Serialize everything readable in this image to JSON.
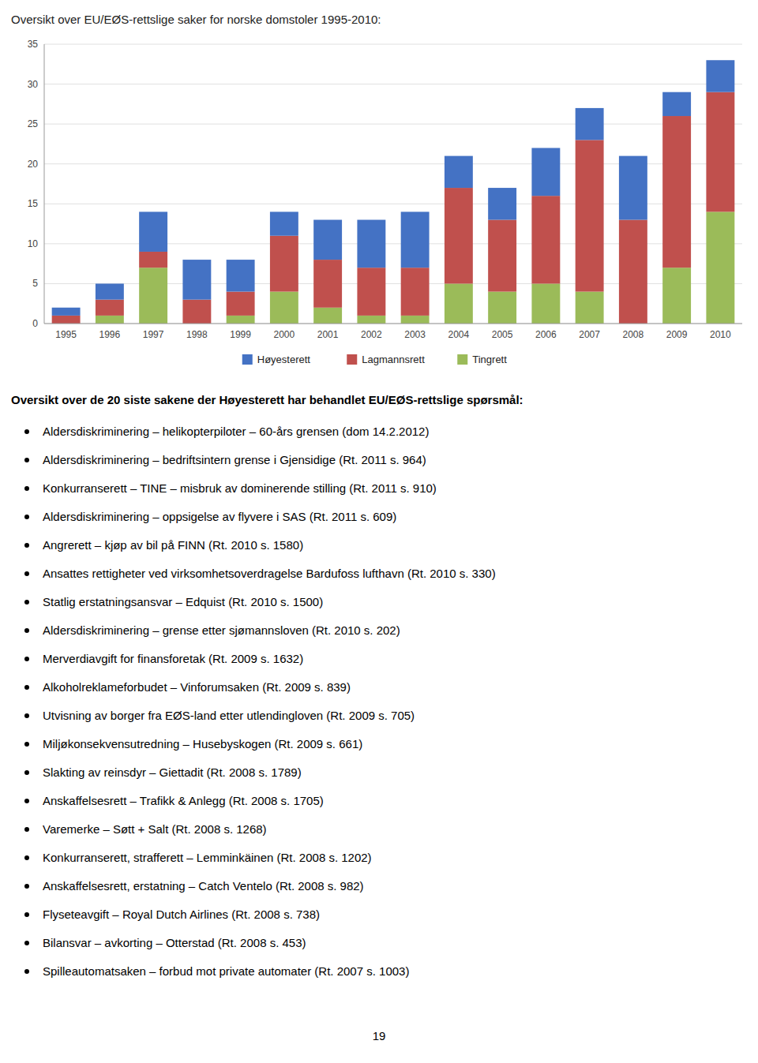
{
  "chart_data": {
    "type": "bar",
    "stacked": true,
    "grid": true,
    "legend": "bottom",
    "title": "Oversikt over EU/EØS-rettslige saker for norske domstoler 1995-2010:",
    "categories": [
      "1995",
      "1996",
      "1997",
      "1998",
      "1999",
      "2000",
      "2001",
      "2002",
      "2003",
      "2004",
      "2005",
      "2006",
      "2007",
      "2008",
      "2009",
      "2010"
    ],
    "series": [
      {
        "name": "Høyesterett",
        "color": "#4472c4",
        "values": [
          1,
          2,
          5,
          5,
          4,
          3,
          5,
          6,
          7,
          4,
          4,
          6,
          4,
          8,
          3,
          4
        ]
      },
      {
        "name": "Lagmannsrett",
        "color": "#c0504d",
        "values": [
          1,
          2,
          2,
          3,
          3,
          7,
          6,
          6,
          6,
          12,
          9,
          11,
          19,
          13,
          19,
          15
        ]
      },
      {
        "name": "Tingrett",
        "color": "#9bbb59",
        "values": [
          0,
          1,
          7,
          0,
          1,
          4,
          2,
          1,
          1,
          5,
          4,
          5,
          4,
          0,
          7,
          14
        ]
      }
    ],
    "ylim": [
      0,
      35
    ],
    "yticks": [
      0,
      5,
      10,
      15,
      20,
      25,
      30,
      35
    ]
  },
  "section_title": "Oversikt over de 20 siste sakene der Høyesterett har behandlet EU/EØS-rettslige spørsmål:",
  "bullet_points": [
    "Aldersdiskriminering – helikopterpiloter – 60-års grensen (dom 14.2.2012)",
    "Aldersdiskriminering – bedriftsintern grense i Gjensidige (Rt. 2011 s. 964)",
    "Konkurranserett – TINE – misbruk av dominerende stilling  (Rt. 2011 s. 910)",
    "Aldersdiskriminering – oppsigelse av flyvere i SAS (Rt. 2011 s. 609)",
    "Angrerett – kjøp av bil på FINN (Rt. 2010 s. 1580)",
    "Ansattes rettigheter ved virksomhetsoverdragelse Bardufoss lufthavn (Rt. 2010 s. 330)",
    "Statlig erstatningsansvar – Edquist (Rt. 2010 s. 1500)",
    "Aldersdiskriminering – grense etter sjømannsloven (Rt. 2010 s. 202)",
    "Merverdiavgift for finansforetak (Rt. 2009 s. 1632)",
    "Alkoholreklameforbudet – Vinforumsaken (Rt. 2009 s. 839)",
    "Utvisning av borger fra EØS-land etter utlendingloven (Rt. 2009 s. 705)",
    "Miljøkonsekvensutredning – Husebyskogen (Rt. 2009 s. 661)",
    "Slakting av reinsdyr – Giettadit (Rt. 2008 s. 1789)",
    "Anskaffelsesrett – Trafikk & Anlegg (Rt. 2008 s. 1705)",
    "Varemerke – Søtt + Salt (Rt. 2008 s. 1268)",
    "Konkurranserett, strafferett – Lemminkäinen (Rt. 2008 s. 1202)",
    "Anskaffelsesrett, erstatning – Catch Ventelo (Rt. 2008 s. 982)",
    "Flyseteavgift – Royal Dutch Airlines (Rt. 2008 s. 738)",
    "Bilansvar – avkorting – Otterstad (Rt. 2008 s. 453)",
    "Spilleautomatsaken – forbud mot private automater (Rt. 2007 s. 1003)"
  ],
  "page_number": "19"
}
